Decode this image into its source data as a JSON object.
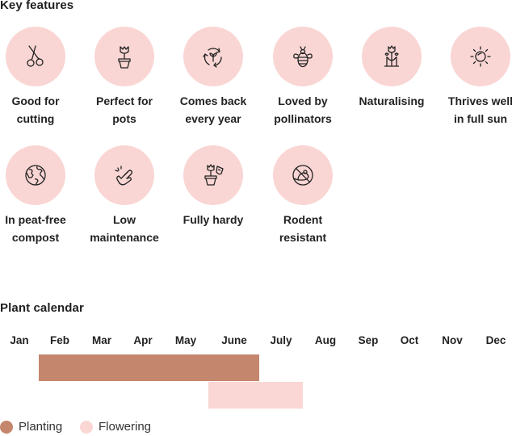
{
  "key_features": {
    "title": "Key features",
    "items": [
      {
        "label_line1": "Good for",
        "label_line2": "cutting",
        "icon": "scissors-icon"
      },
      {
        "label_line1": "Perfect for",
        "label_line2": "pots",
        "icon": "potted-flower-icon"
      },
      {
        "label_line1": "Comes back",
        "label_line2": "every year",
        "icon": "recycle-sprout-icon"
      },
      {
        "label_line1": "Loved by",
        "label_line2": "pollinators",
        "icon": "bee-icon"
      },
      {
        "label_line1": "Naturalising",
        "label_line2": "",
        "icon": "tulip-group-icon"
      },
      {
        "label_line1": "Thrives well",
        "label_line2": "in full sun",
        "icon": "sun-icon"
      },
      {
        "label_line1": "In peat-free",
        "label_line2": "compost",
        "icon": "globe-icon"
      },
      {
        "label_line1": "Low",
        "label_line2": "maintenance",
        "icon": "hand-sparkle-icon"
      },
      {
        "label_line1": "Fully hardy",
        "label_line2": "",
        "icon": "frost-hardy-pot-icon"
      },
      {
        "label_line1": "Rodent",
        "label_line2": "resistant",
        "icon": "no-rodent-icon"
      }
    ]
  },
  "calendar": {
    "title": "Plant calendar",
    "months": [
      "Jan",
      "Feb",
      "Mar",
      "Apr",
      "May",
      "June",
      "July",
      "Aug",
      "Sep",
      "Oct",
      "Nov",
      "Dec"
    ],
    "planting": {
      "start_month": "Feb",
      "end_month": "June",
      "color": "#c4866c"
    },
    "flowering": {
      "start_month": "June",
      "end_month": "July",
      "color": "#fad6d4"
    },
    "legend": {
      "planting_label": "Planting",
      "flowering_label": "Flowering"
    }
  },
  "colors": {
    "icon_circle": "#f9d6d4",
    "planting": "#c4866c",
    "flowering": "#fad6d4"
  }
}
